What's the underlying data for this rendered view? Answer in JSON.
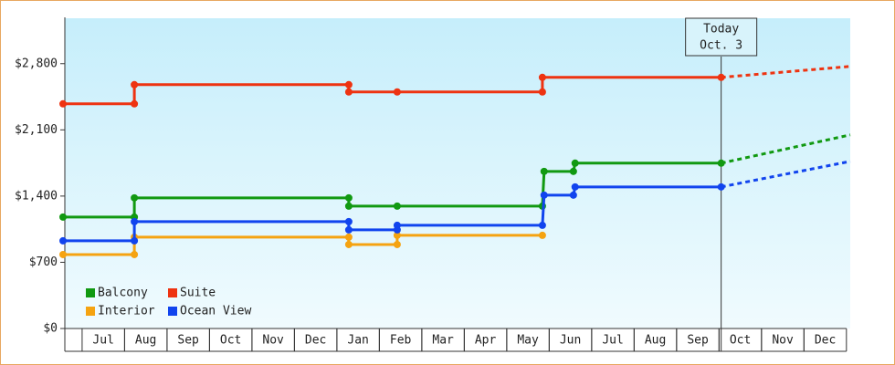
{
  "chart_data": {
    "type": "step-line",
    "xticks": [
      {
        "value": 0.5,
        "label": "Jul"
      },
      {
        "value": 1.5,
        "label": "Aug"
      },
      {
        "value": 2.5,
        "label": "Sep"
      },
      {
        "value": 3.5,
        "label": "Oct"
      },
      {
        "value": 4.5,
        "label": "Nov"
      },
      {
        "value": 5.5,
        "label": "Dec"
      },
      {
        "value": 6.5,
        "label": "Jan"
      },
      {
        "value": 7.5,
        "label": "Feb"
      },
      {
        "value": 8.5,
        "label": "Mar"
      },
      {
        "value": 9.5,
        "label": "Apr"
      },
      {
        "value": 10.5,
        "label": "May"
      },
      {
        "value": 11.5,
        "label": "Jun"
      },
      {
        "value": 12.5,
        "label": "Jul"
      },
      {
        "value": 13.5,
        "label": "Aug"
      },
      {
        "value": 14.5,
        "label": "Sep"
      },
      {
        "value": 15.5,
        "label": "Oct"
      },
      {
        "value": 16.5,
        "label": "Nov"
      },
      {
        "value": 17.5,
        "label": "Dec"
      }
    ],
    "xlim": [
      -0.45,
      18.09
    ],
    "ylim": [
      0,
      3280
    ],
    "yticks": [
      {
        "value": 0,
        "label": "$0"
      },
      {
        "value": 700,
        "label": "$700"
      },
      {
        "value": 1400,
        "label": "$1,400"
      },
      {
        "value": 2100,
        "label": "$2,100"
      },
      {
        "value": 2800,
        "label": "$2,800"
      }
    ],
    "today": {
      "label": [
        "Today",
        "Oct. 3"
      ],
      "x": 15.05
    },
    "projection_x": [
      15.05,
      18.09
    ],
    "series": [
      {
        "name": "Balcony",
        "color": "#119911",
        "x": [
          -0.45,
          1.23,
          1.23,
          6.28,
          6.28,
          7.42,
          10.84,
          10.88,
          11.57,
          11.61,
          15.05
        ],
        "values": [
          1178,
          1178,
          1381,
          1381,
          1294,
          1294,
          1294,
          1661,
          1661,
          1748,
          1748
        ],
        "projection": [
          1748,
          2047
        ]
      },
      {
        "name": "Suite",
        "color": "#ee3311",
        "x": [
          -0.45,
          1.23,
          1.23,
          6.28,
          6.28,
          7.42,
          10.84,
          10.84,
          15.05
        ],
        "values": [
          2375,
          2375,
          2578,
          2578,
          2501,
          2501,
          2501,
          2655,
          2655
        ],
        "projection": [
          2655,
          2771
        ]
      },
      {
        "name": "Interior",
        "color": "#f5a311",
        "x": [
          -0.45,
          1.23,
          1.23,
          6.28,
          6.28,
          7.42,
          7.42,
          10.84
        ],
        "values": [
          782,
          782,
          966,
          966,
          888,
          888,
          985,
          985
        ]
      },
      {
        "name": "Ocean View",
        "color": "#1144ee",
        "x": [
          -0.45,
          1.23,
          1.23,
          6.28,
          6.28,
          7.42,
          7.42,
          10.84,
          10.88,
          11.57,
          11.61,
          15.05
        ],
        "values": [
          927,
          927,
          1130,
          1130,
          1043,
          1043,
          1091,
          1091,
          1410,
          1410,
          1497,
          1497
        ],
        "projection": [
          1497,
          1767
        ]
      }
    ]
  }
}
